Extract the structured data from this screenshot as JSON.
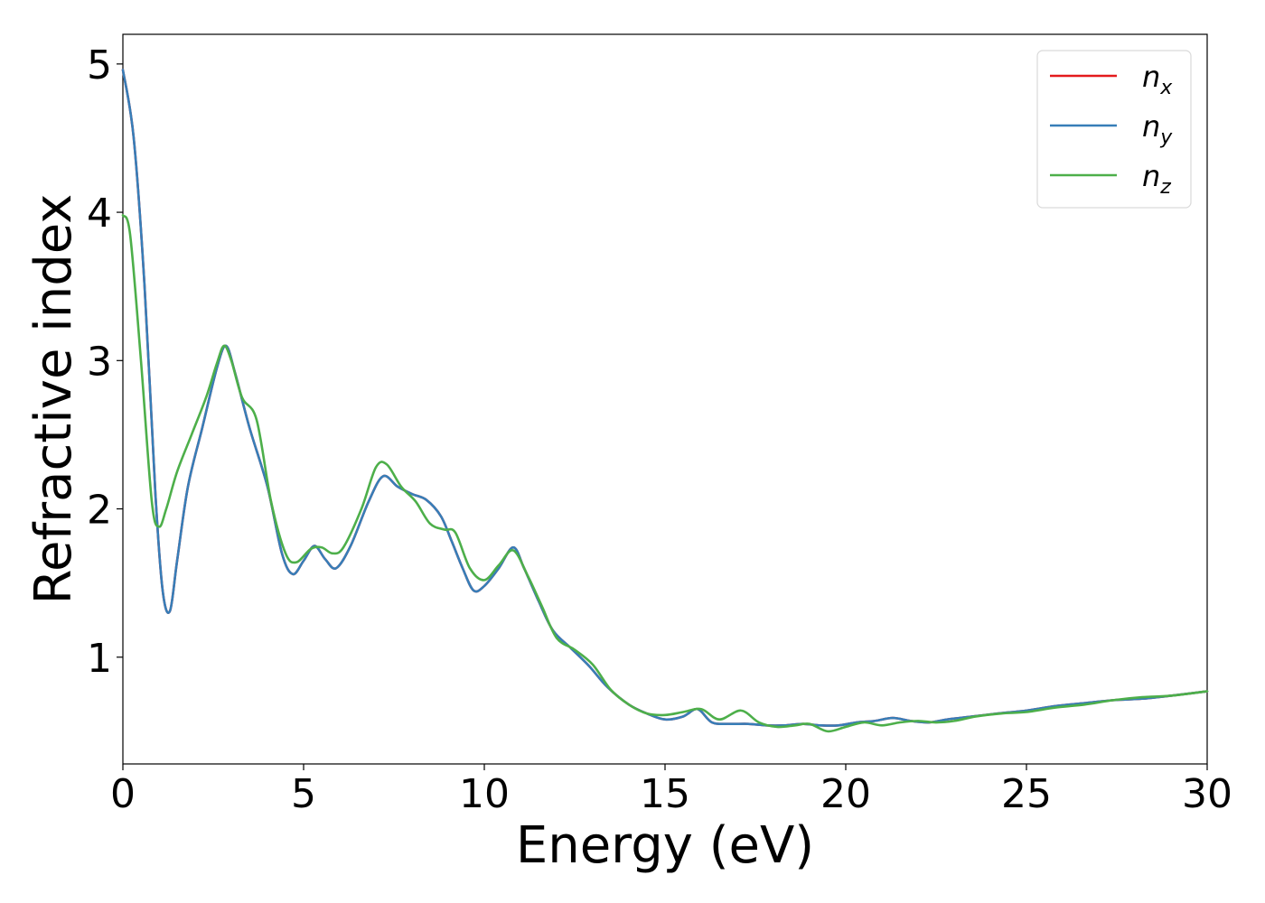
{
  "chart_data": {
    "type": "line",
    "title": "",
    "xlabel": "Energy (eV)",
    "ylabel": "Refractive index",
    "xlim": [
      0,
      30
    ],
    "ylim": [
      0.28,
      5.2
    ],
    "xticks": [
      0,
      5,
      10,
      15,
      20,
      25,
      30
    ],
    "yticks": [
      1,
      2,
      3,
      4,
      5
    ],
    "grid": false,
    "legend_position": "top-right",
    "series": [
      {
        "name": "n",
        "subscript": "x",
        "color": "#e41a1c",
        "x": [
          0,
          0.3,
          0.6,
          0.9,
          1.1,
          1.3,
          1.5,
          1.8,
          2.2,
          2.6,
          2.85,
          3.1,
          3.5,
          4.0,
          4.4,
          4.7,
          5.0,
          5.3,
          5.6,
          5.9,
          6.3,
          6.8,
          7.2,
          7.6,
          8.0,
          8.4,
          8.8,
          9.1,
          9.4,
          9.7,
          10.0,
          10.4,
          10.8,
          11.1,
          11.5,
          11.9,
          12.4,
          12.9,
          13.4,
          14.0,
          14.5,
          15.0,
          15.5,
          15.9,
          16.3,
          16.8,
          17.3,
          17.8,
          18.3,
          18.8,
          19.3,
          19.8,
          20.3,
          20.8,
          21.3,
          21.8,
          22.3,
          22.8,
          23.5,
          24.2,
          25.0,
          25.8,
          26.6,
          27.4,
          28.2,
          29.0,
          30.0
        ],
        "values": [
          4.96,
          4.5,
          3.5,
          2.1,
          1.45,
          1.31,
          1.65,
          2.15,
          2.55,
          2.95,
          3.1,
          2.92,
          2.55,
          2.15,
          1.7,
          1.56,
          1.65,
          1.75,
          1.66,
          1.6,
          1.75,
          2.05,
          2.22,
          2.15,
          2.1,
          2.06,
          1.95,
          1.78,
          1.6,
          1.45,
          1.48,
          1.6,
          1.74,
          1.6,
          1.38,
          1.18,
          1.06,
          0.94,
          0.8,
          0.68,
          0.62,
          0.58,
          0.6,
          0.65,
          0.56,
          0.55,
          0.55,
          0.54,
          0.54,
          0.55,
          0.54,
          0.54,
          0.56,
          0.57,
          0.59,
          0.57,
          0.56,
          0.58,
          0.6,
          0.62,
          0.64,
          0.67,
          0.69,
          0.71,
          0.72,
          0.74,
          0.77
        ]
      },
      {
        "name": "n",
        "subscript": "y",
        "color": "#377eb8",
        "x": [
          0,
          0.3,
          0.6,
          0.9,
          1.1,
          1.3,
          1.5,
          1.8,
          2.2,
          2.6,
          2.85,
          3.1,
          3.5,
          4.0,
          4.4,
          4.7,
          5.0,
          5.3,
          5.6,
          5.9,
          6.3,
          6.8,
          7.2,
          7.6,
          8.0,
          8.4,
          8.8,
          9.1,
          9.4,
          9.7,
          10.0,
          10.4,
          10.8,
          11.1,
          11.5,
          11.9,
          12.4,
          12.9,
          13.4,
          14.0,
          14.5,
          15.0,
          15.5,
          15.9,
          16.3,
          16.8,
          17.3,
          17.8,
          18.3,
          18.8,
          19.3,
          19.8,
          20.3,
          20.8,
          21.3,
          21.8,
          22.3,
          22.8,
          23.5,
          24.2,
          25.0,
          25.8,
          26.6,
          27.4,
          28.2,
          29.0,
          30.0
        ],
        "values": [
          4.96,
          4.5,
          3.5,
          2.1,
          1.45,
          1.31,
          1.65,
          2.15,
          2.55,
          2.95,
          3.1,
          2.92,
          2.55,
          2.15,
          1.7,
          1.56,
          1.65,
          1.75,
          1.66,
          1.6,
          1.75,
          2.05,
          2.22,
          2.15,
          2.1,
          2.06,
          1.95,
          1.78,
          1.6,
          1.45,
          1.48,
          1.6,
          1.74,
          1.6,
          1.38,
          1.18,
          1.06,
          0.94,
          0.8,
          0.68,
          0.62,
          0.58,
          0.6,
          0.65,
          0.56,
          0.55,
          0.55,
          0.54,
          0.54,
          0.55,
          0.54,
          0.54,
          0.56,
          0.57,
          0.59,
          0.57,
          0.56,
          0.58,
          0.6,
          0.62,
          0.64,
          0.67,
          0.69,
          0.71,
          0.72,
          0.74,
          0.77
        ]
      },
      {
        "name": "n",
        "subscript": "z",
        "color": "#4daf4a",
        "x": [
          0,
          0.2,
          0.5,
          0.8,
          1.0,
          1.2,
          1.5,
          1.9,
          2.3,
          2.6,
          2.8,
          3.0,
          3.3,
          3.7,
          4.1,
          4.5,
          4.8,
          5.2,
          5.5,
          5.8,
          6.1,
          6.6,
          7.0,
          7.3,
          7.7,
          8.1,
          8.5,
          8.9,
          9.2,
          9.6,
          10.0,
          10.4,
          10.8,
          11.2,
          11.6,
          12.0,
          12.5,
          13.0,
          13.5,
          14.0,
          14.5,
          15.0,
          15.5,
          16.0,
          16.5,
          17.1,
          17.6,
          18.1,
          18.6,
          19.0,
          19.5,
          20.0,
          20.5,
          21.0,
          21.5,
          22.0,
          22.5,
          23.0,
          23.6,
          24.3,
          25.0,
          25.8,
          26.6,
          27.4,
          28.2,
          29.0,
          30.0
        ],
        "values": [
          3.98,
          3.85,
          3.0,
          2.05,
          1.88,
          2.0,
          2.25,
          2.5,
          2.75,
          2.98,
          3.1,
          3.0,
          2.75,
          2.6,
          2.05,
          1.7,
          1.64,
          1.73,
          1.74,
          1.7,
          1.74,
          2.0,
          2.28,
          2.3,
          2.15,
          2.05,
          1.9,
          1.86,
          1.84,
          1.6,
          1.52,
          1.62,
          1.72,
          1.55,
          1.34,
          1.13,
          1.05,
          0.95,
          0.78,
          0.68,
          0.62,
          0.61,
          0.63,
          0.65,
          0.58,
          0.64,
          0.56,
          0.53,
          0.54,
          0.55,
          0.5,
          0.53,
          0.56,
          0.54,
          0.56,
          0.57,
          0.56,
          0.57,
          0.6,
          0.62,
          0.63,
          0.66,
          0.68,
          0.71,
          0.73,
          0.74,
          0.77
        ]
      }
    ]
  }
}
